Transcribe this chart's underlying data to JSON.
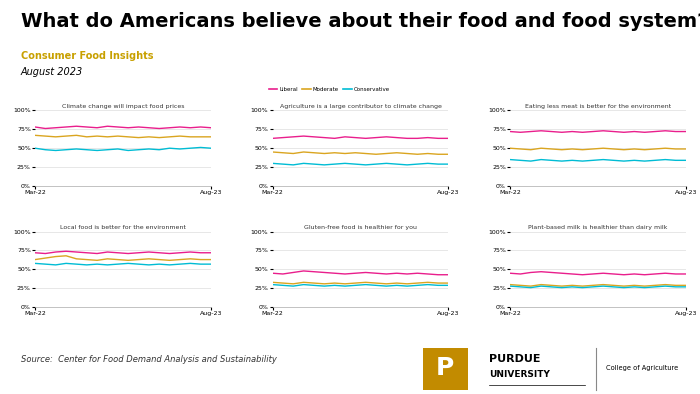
{
  "title": "What do Americans believe about their food and food system?",
  "subtitle": "Consumer Food Insights",
  "date": "August 2023",
  "source": "Source:  Center for Food Demand Analysis and Sustainability",
  "title_fontsize": 14,
  "subtitle_color": "#C8A000",
  "colors": {
    "Liberal": "#E91E8C",
    "Moderate": "#DAA520",
    "Conservative": "#00BCD4"
  },
  "x_labels": [
    "Mar-22",
    "Aug-23"
  ],
  "subplots": [
    {
      "title": "Climate change will impact food prices",
      "Liberal": [
        78,
        76,
        77,
        78,
        79,
        78,
        77,
        79,
        78,
        77,
        78,
        77,
        76,
        77,
        78,
        77,
        78,
        77
      ],
      "Moderate": [
        67,
        66,
        65,
        66,
        67,
        65,
        66,
        65,
        66,
        65,
        64,
        65,
        64,
        65,
        66,
        65,
        65,
        65
      ],
      "Conservative": [
        50,
        48,
        47,
        48,
        49,
        48,
        47,
        48,
        49,
        47,
        48,
        49,
        48,
        50,
        49,
        50,
        51,
        50
      ]
    },
    {
      "title": "Agriculture is a large contributor to climate change",
      "Liberal": [
        63,
        64,
        65,
        66,
        65,
        64,
        63,
        65,
        64,
        63,
        64,
        65,
        64,
        63,
        63,
        64,
        63,
        63
      ],
      "Moderate": [
        45,
        44,
        43,
        45,
        44,
        43,
        44,
        43,
        44,
        43,
        42,
        43,
        44,
        43,
        42,
        43,
        42,
        42
      ],
      "Conservative": [
        30,
        29,
        28,
        30,
        29,
        28,
        29,
        30,
        29,
        28,
        29,
        30,
        29,
        28,
        29,
        30,
        29,
        29
      ]
    },
    {
      "title": "Eating less meat is better for the environment",
      "Liberal": [
        72,
        71,
        72,
        73,
        72,
        71,
        72,
        71,
        72,
        73,
        72,
        71,
        72,
        71,
        72,
        73,
        72,
        72
      ],
      "Moderate": [
        50,
        49,
        48,
        50,
        49,
        48,
        49,
        48,
        49,
        50,
        49,
        48,
        49,
        48,
        49,
        50,
        49,
        49
      ],
      "Conservative": [
        35,
        34,
        33,
        35,
        34,
        33,
        34,
        33,
        34,
        35,
        34,
        33,
        34,
        33,
        34,
        35,
        34,
        34
      ]
    },
    {
      "title": "Local food is better for the environment",
      "Liberal": [
        72,
        71,
        73,
        74,
        73,
        72,
        71,
        73,
        72,
        71,
        72,
        73,
        72,
        71,
        72,
        73,
        72,
        72
      ],
      "Moderate": [
        63,
        65,
        67,
        68,
        64,
        63,
        62,
        64,
        63,
        62,
        63,
        64,
        63,
        62,
        63,
        64,
        63,
        63
      ],
      "Conservative": [
        58,
        57,
        56,
        58,
        57,
        56,
        57,
        56,
        57,
        58,
        57,
        56,
        57,
        56,
        57,
        58,
        57,
        57
      ]
    },
    {
      "title": "Gluten-free food is healthier for you",
      "Liberal": [
        45,
        44,
        46,
        48,
        47,
        46,
        45,
        44,
        45,
        46,
        45,
        44,
        45,
        44,
        45,
        44,
        43,
        43
      ],
      "Moderate": [
        33,
        32,
        31,
        33,
        32,
        31,
        32,
        31,
        32,
        33,
        32,
        31,
        32,
        31,
        32,
        33,
        32,
        32
      ],
      "Conservative": [
        30,
        29,
        28,
        30,
        29,
        28,
        29,
        28,
        29,
        30,
        29,
        28,
        29,
        28,
        29,
        30,
        29,
        29
      ]
    },
    {
      "title": "Plant-based milk is healthier than dairy milk",
      "Liberal": [
        45,
        44,
        46,
        47,
        46,
        45,
        44,
        43,
        44,
        45,
        44,
        43,
        44,
        43,
        44,
        45,
        44,
        44
      ],
      "Moderate": [
        30,
        29,
        28,
        30,
        29,
        28,
        29,
        28,
        29,
        30,
        29,
        28,
        29,
        28,
        29,
        30,
        29,
        29
      ],
      "Conservative": [
        28,
        27,
        26,
        28,
        27,
        26,
        27,
        26,
        27,
        28,
        27,
        26,
        27,
        26,
        27,
        28,
        27,
        27
      ]
    }
  ]
}
